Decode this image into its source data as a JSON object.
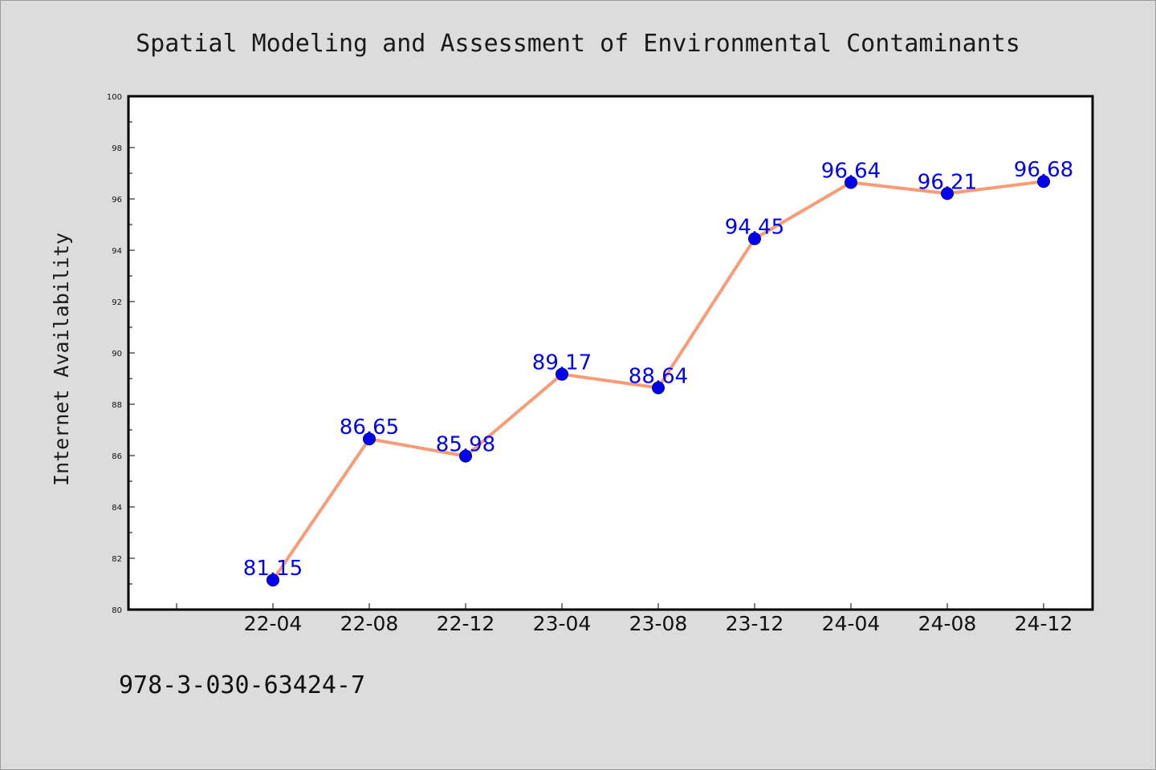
{
  "chart_data": {
    "type": "line",
    "title": "Spatial Modeling and Assessment of Environmental Contaminants",
    "xlabel": "",
    "ylabel": "Internet Availability",
    "categories": [
      "22-04",
      "22-08",
      "22-12",
      "23-04",
      "23-08",
      "23-12",
      "24-04",
      "24-08",
      "24-12"
    ],
    "series": [
      {
        "values": [
          81.15,
          86.65,
          85.98,
          89.17,
          88.64,
          94.45,
          96.64,
          96.21,
          96.68
        ]
      }
    ],
    "data_labels": [
      "81.15",
      "86.65",
      "85.98",
      "89.17",
      "88.64",
      "94.45",
      "96.64",
      "96.21",
      "96.68"
    ],
    "ylim": [
      80,
      100
    ],
    "yticks": [
      "80",
      "82",
      "84",
      "86",
      "88",
      "90",
      "92",
      "94",
      "96",
      "98",
      "100"
    ],
    "grid": false,
    "legend": "none",
    "colors": {
      "line": "#fa9b78",
      "marker": "#0000ee",
      "marker_edge": "#00008b",
      "label": "#0000ee",
      "background": "#dcdcdc",
      "plot_background": "#ffffff"
    }
  },
  "footnote": "978-3-030-63424-7"
}
